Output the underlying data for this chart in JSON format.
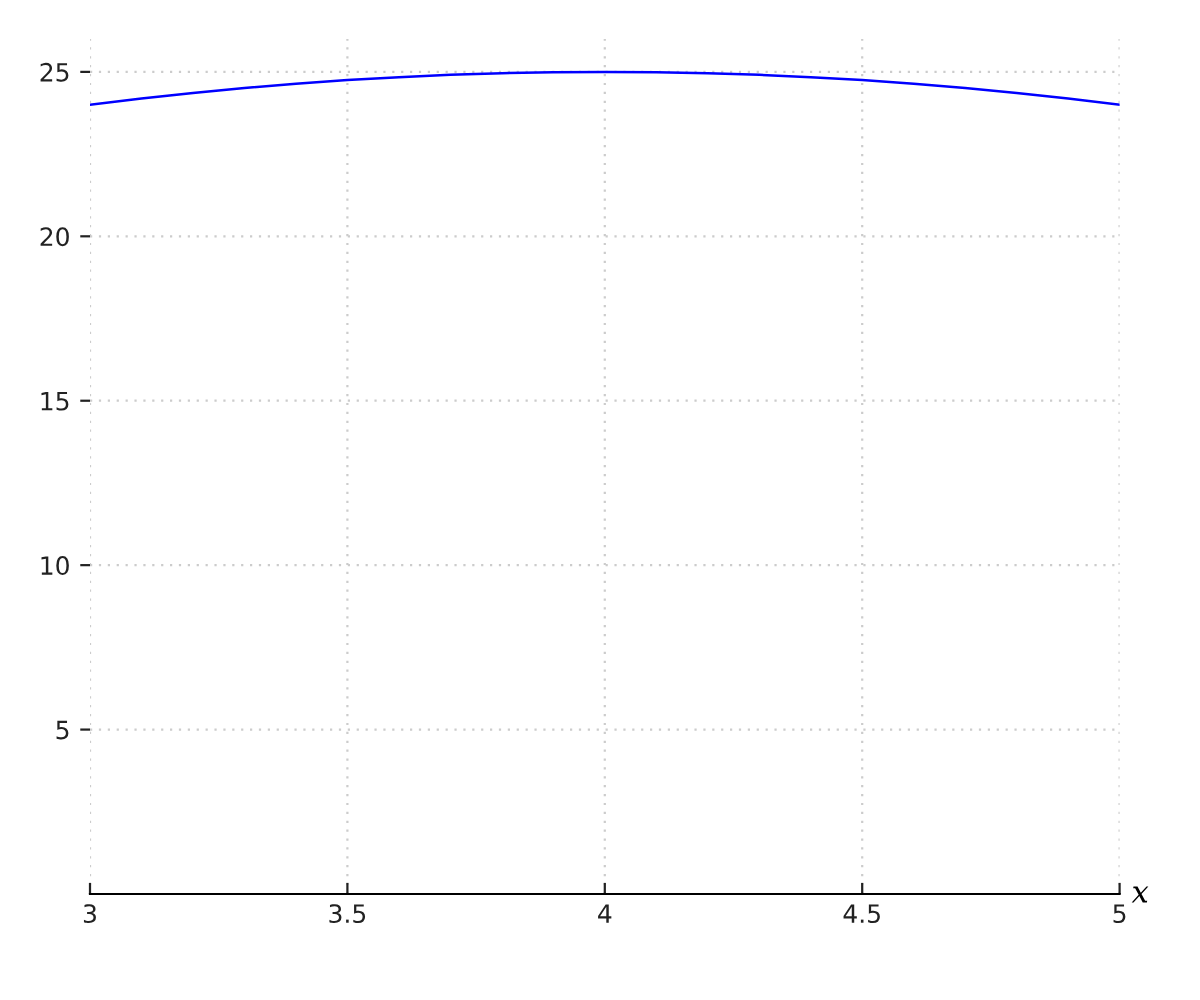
{
  "chart_data": {
    "type": "line",
    "xlabel": "x",
    "x": [
      3,
      3.1,
      3.2,
      3.3,
      3.4,
      3.5,
      3.6,
      3.7,
      3.8,
      3.9,
      4.0,
      4.1,
      4.2,
      4.3,
      4.4,
      4.5,
      4.6,
      4.7,
      4.8,
      4.9,
      5
    ],
    "series": [
      {
        "color": "#0000ff",
        "values": [
          24,
          24.19,
          24.36,
          24.51,
          24.64,
          24.75,
          24.84,
          24.91,
          24.96,
          24.99,
          25,
          24.99,
          24.96,
          24.91,
          24.84,
          24.75,
          24.64,
          24.51,
          24.36,
          24.19,
          24
        ]
      }
    ],
    "xlim": [
      3,
      5
    ],
    "ylim": [
      0,
      26
    ],
    "xticks": [
      3,
      3.5,
      4,
      4.5,
      5
    ],
    "yticks": [
      5,
      10,
      15,
      20,
      25
    ],
    "grid": true,
    "line_style": "solid",
    "marker": "none"
  }
}
